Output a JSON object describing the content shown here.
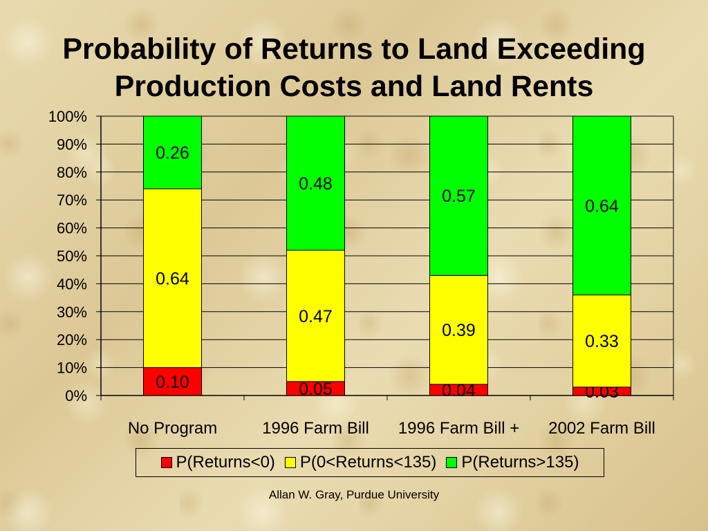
{
  "slide": {
    "title_line1": "Probability of Returns to Land Exceeding",
    "title_line2": "Production Costs and Land Rents",
    "footer": "Allan W. Gray, Purdue University"
  },
  "chart_data": {
    "type": "bar",
    "stacked": true,
    "categories": [
      "No Program",
      "1996 Farm Bill",
      "1996 Farm Bill +",
      "2002 Farm Bill"
    ],
    "series": [
      {
        "name": "P(Returns<0)",
        "color": "#ff0000",
        "values": [
          0.1,
          0.05,
          0.04,
          0.03
        ],
        "labels": [
          "0.10",
          "0.05",
          "0.04",
          "0.03"
        ]
      },
      {
        "name": "P(0<Returns<135)",
        "color": "#ffff00",
        "values": [
          0.64,
          0.47,
          0.39,
          0.33
        ],
        "labels": [
          "0.64",
          "0.47",
          "0.39",
          "0.33"
        ]
      },
      {
        "name": "P(Returns>135)",
        "color": "#00ff00",
        "values": [
          0.26,
          0.48,
          0.57,
          0.64
        ],
        "labels": [
          "0.26",
          "0.48",
          "0.57",
          "0.64"
        ]
      }
    ],
    "yticks": [
      "0%",
      "10%",
      "20%",
      "30%",
      "40%",
      "50%",
      "60%",
      "70%",
      "80%",
      "90%",
      "100%"
    ],
    "ylim": [
      0,
      1
    ],
    "grid": true,
    "legend_position": "bottom"
  }
}
